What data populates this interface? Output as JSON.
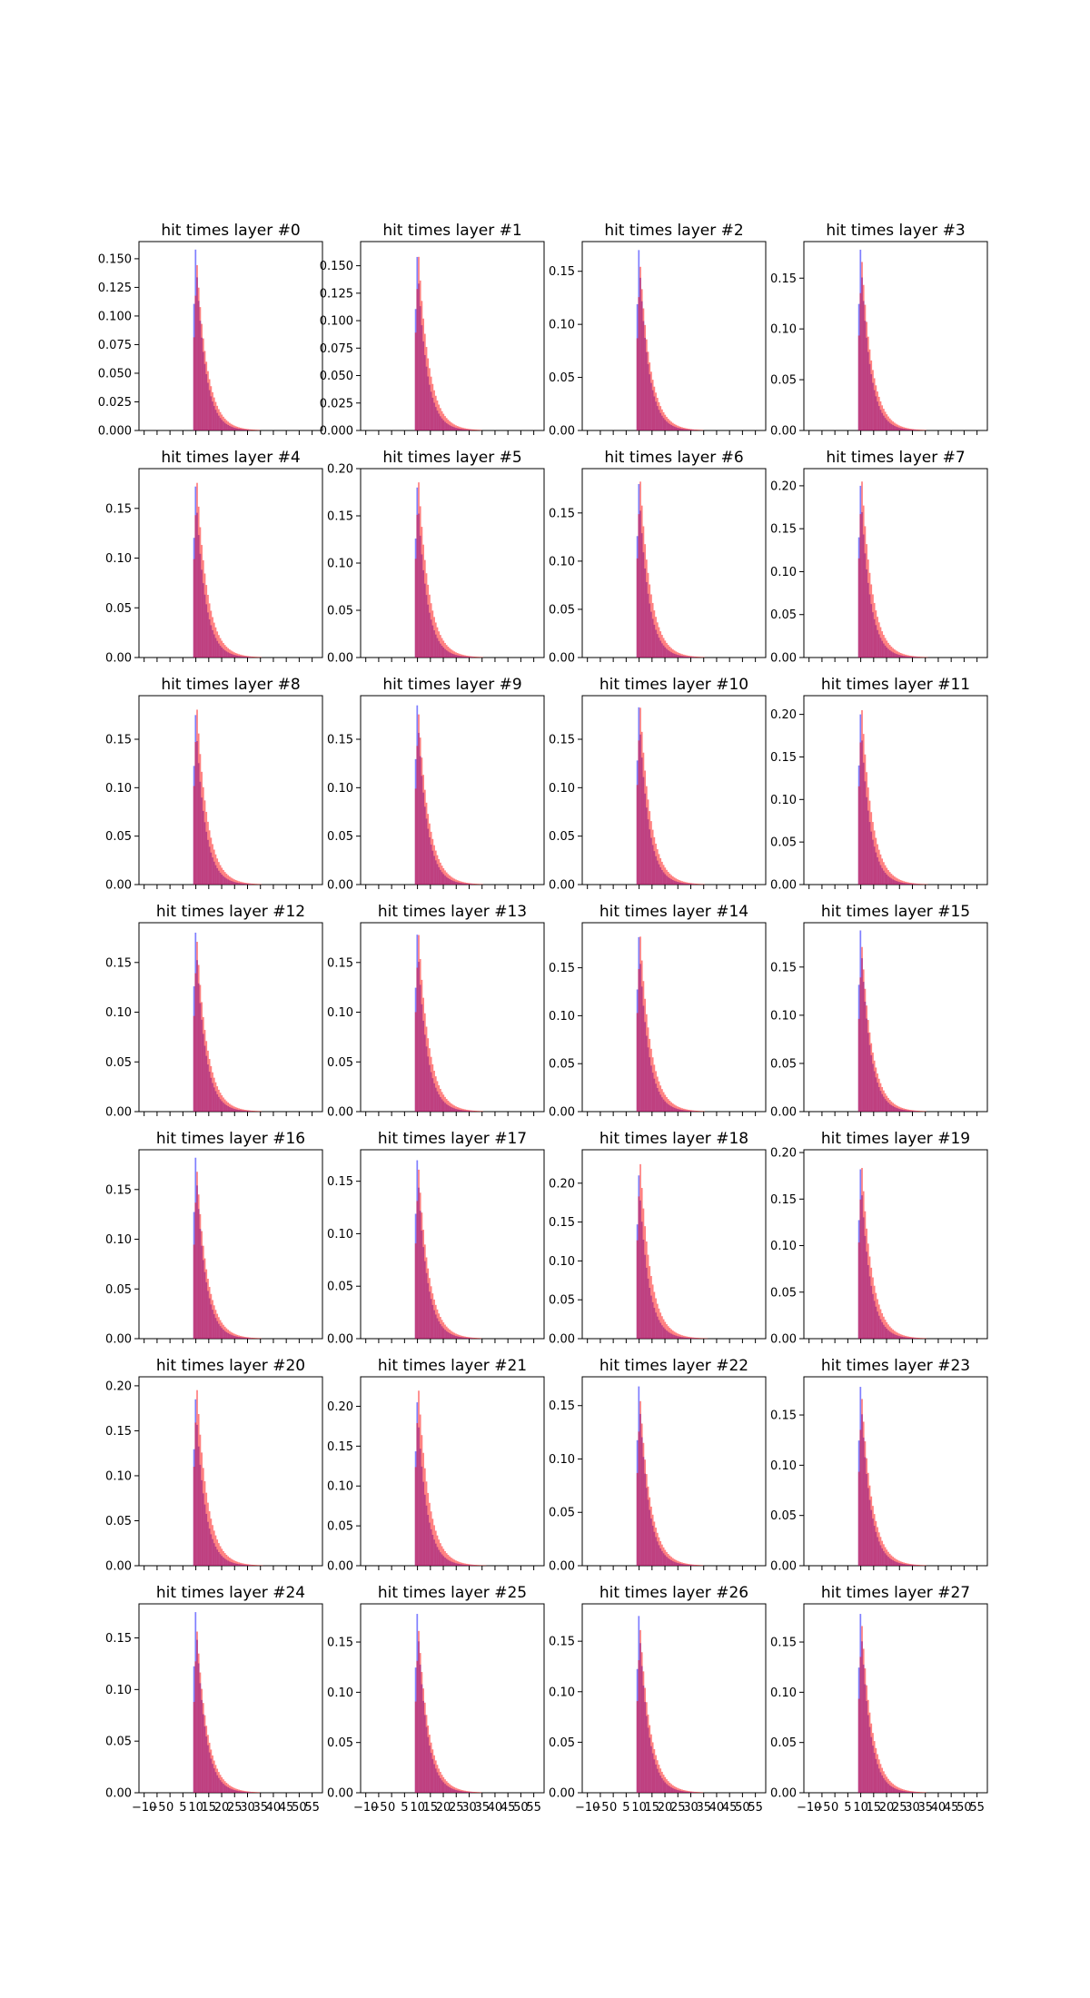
{
  "chart_data": {
    "type": "histogram_grid",
    "rows": 7,
    "cols": 4,
    "xlim": [
      -12,
      59
    ],
    "xticks": [
      -10,
      -5,
      0,
      5,
      10,
      15,
      20,
      25,
      30,
      35,
      40,
      45,
      50,
      55
    ],
    "xtick_labels_shown_on_bottom_row": true,
    "series_colors": {
      "series_a": "#0000ff",
      "series_b": "#ff0000",
      "alpha": 0.5
    },
    "panels": [
      {
        "title": "hit times layer #0",
        "peak_a": 0.158,
        "peak_b": 0.148,
        "ylim": [
          0,
          0.165
        ],
        "yticks": [
          0.0,
          0.025,
          0.05,
          0.075,
          0.1,
          0.125,
          0.15
        ],
        "ytick_labels": [
          "0.000",
          "0.025",
          "0.050",
          "0.075",
          "0.100",
          "0.125",
          "0.150"
        ]
      },
      {
        "title": "hit times layer #1",
        "peak_a": 0.158,
        "peak_b": 0.162,
        "ylim": [
          0,
          0.172
        ],
        "yticks": [
          0.0,
          0.025,
          0.05,
          0.075,
          0.1,
          0.125,
          0.15
        ],
        "ytick_labels": [
          "0.000",
          "0.025",
          "0.050",
          "0.075",
          "0.100",
          "0.125",
          "0.150"
        ]
      },
      {
        "title": "hit times layer #2",
        "peak_a": 0.17,
        "peak_b": 0.158,
        "ylim": [
          0,
          0.178
        ],
        "yticks": [
          0.0,
          0.05,
          0.1,
          0.15
        ],
        "ytick_labels": [
          "0.00",
          "0.05",
          "0.10",
          "0.15"
        ]
      },
      {
        "title": "hit times layer #3",
        "peak_a": 0.178,
        "peak_b": 0.17,
        "ylim": [
          0,
          0.186
        ],
        "yticks": [
          0.0,
          0.05,
          0.1,
          0.15
        ],
        "ytick_labels": [
          "0.00",
          "0.05",
          "0.10",
          "0.15"
        ]
      },
      {
        "title": "hit times layer #4",
        "peak_a": 0.172,
        "peak_b": 0.18,
        "ylim": [
          0,
          0.19
        ],
        "yticks": [
          0.0,
          0.05,
          0.1,
          0.15
        ],
        "ytick_labels": [
          "0.00",
          "0.05",
          "0.10",
          "0.15"
        ]
      },
      {
        "title": "hit times layer #5",
        "peak_a": 0.18,
        "peak_b": 0.19,
        "ylim": [
          0,
          0.2
        ],
        "yticks": [
          0.0,
          0.05,
          0.1,
          0.15,
          0.2
        ],
        "ytick_labels": [
          "0.00",
          "0.05",
          "0.10",
          "0.15",
          "0.20"
        ]
      },
      {
        "title": "hit times layer #6",
        "peak_a": 0.18,
        "peak_b": 0.187,
        "ylim": [
          0,
          0.196
        ],
        "yticks": [
          0.0,
          0.05,
          0.1,
          0.15
        ],
        "ytick_labels": [
          "0.00",
          "0.05",
          "0.10",
          "0.15"
        ]
      },
      {
        "title": "hit times layer #7",
        "peak_a": 0.2,
        "peak_b": 0.21,
        "ylim": [
          0,
          0.22
        ],
        "yticks": [
          0.0,
          0.05,
          0.1,
          0.15,
          0.2
        ],
        "ytick_labels": [
          "0.00",
          "0.05",
          "0.10",
          "0.15",
          "0.20"
        ]
      },
      {
        "title": "hit times layer #8",
        "peak_a": 0.175,
        "peak_b": 0.185,
        "ylim": [
          0,
          0.195
        ],
        "yticks": [
          0.0,
          0.05,
          0.1,
          0.15
        ],
        "ytick_labels": [
          "0.00",
          "0.05",
          "0.10",
          "0.15"
        ]
      },
      {
        "title": "hit times layer #9",
        "peak_a": 0.185,
        "peak_b": 0.18,
        "ylim": [
          0,
          0.195
        ],
        "yticks": [
          0.0,
          0.05,
          0.1,
          0.15
        ],
        "ytick_labels": [
          "0.00",
          "0.05",
          "0.10",
          "0.15"
        ]
      },
      {
        "title": "hit times layer #10",
        "peak_a": 0.183,
        "peak_b": 0.187,
        "ylim": [
          0,
          0.195
        ],
        "yticks": [
          0.0,
          0.05,
          0.1,
          0.15
        ],
        "ytick_labels": [
          "0.00",
          "0.05",
          "0.10",
          "0.15"
        ]
      },
      {
        "title": "hit times layer #11",
        "peak_a": 0.2,
        "peak_b": 0.21,
        "ylim": [
          0,
          0.222
        ],
        "yticks": [
          0.0,
          0.05,
          0.1,
          0.15,
          0.2
        ],
        "ytick_labels": [
          "0.00",
          "0.05",
          "0.10",
          "0.15",
          "0.20"
        ]
      },
      {
        "title": "hit times layer #12",
        "peak_a": 0.18,
        "peak_b": 0.175,
        "ylim": [
          0,
          0.19
        ],
        "yticks": [
          0.0,
          0.05,
          0.1,
          0.15
        ],
        "ytick_labels": [
          "0.00",
          "0.05",
          "0.10",
          "0.15"
        ]
      },
      {
        "title": "hit times layer #13",
        "peak_a": 0.178,
        "peak_b": 0.182,
        "ylim": [
          0,
          0.19
        ],
        "yticks": [
          0.0,
          0.05,
          0.1,
          0.15
        ],
        "ytick_labels": [
          "0.00",
          "0.05",
          "0.10",
          "0.15"
        ]
      },
      {
        "title": "hit times layer #14",
        "peak_a": 0.182,
        "peak_b": 0.187,
        "ylim": [
          0,
          0.197
        ],
        "yticks": [
          0.0,
          0.05,
          0.1,
          0.15
        ],
        "ytick_labels": [
          "0.00",
          "0.05",
          "0.10",
          "0.15"
        ]
      },
      {
        "title": "hit times layer #15",
        "peak_a": 0.188,
        "peak_b": 0.175,
        "ylim": [
          0,
          0.196
        ],
        "yticks": [
          0.0,
          0.05,
          0.1,
          0.15
        ],
        "ytick_labels": [
          "0.00",
          "0.05",
          "0.10",
          "0.15"
        ]
      },
      {
        "title": "hit times layer #16",
        "peak_a": 0.182,
        "peak_b": 0.172,
        "ylim": [
          0,
          0.19
        ],
        "yticks": [
          0.0,
          0.05,
          0.1,
          0.15
        ],
        "ytick_labels": [
          "0.00",
          "0.05",
          "0.10",
          "0.15"
        ]
      },
      {
        "title": "hit times layer #17",
        "peak_a": 0.17,
        "peak_b": 0.165,
        "ylim": [
          0,
          0.18
        ],
        "yticks": [
          0.0,
          0.05,
          0.1,
          0.15
        ],
        "ytick_labels": [
          "0.00",
          "0.05",
          "0.10",
          "0.15"
        ]
      },
      {
        "title": "hit times layer #18",
        "peak_a": 0.21,
        "peak_b": 0.23,
        "ylim": [
          0,
          0.243
        ],
        "yticks": [
          0.0,
          0.05,
          0.1,
          0.15,
          0.2
        ],
        "ytick_labels": [
          "0.00",
          "0.05",
          "0.10",
          "0.15",
          "0.20"
        ]
      },
      {
        "title": "hit times layer #19",
        "peak_a": 0.182,
        "peak_b": 0.188,
        "ylim": [
          0,
          0.203
        ],
        "yticks": [
          0.0,
          0.05,
          0.1,
          0.15,
          0.2
        ],
        "ytick_labels": [
          "0.00",
          "0.05",
          "0.10",
          "0.15",
          "0.20"
        ]
      },
      {
        "title": "hit times layer #20",
        "peak_a": 0.185,
        "peak_b": 0.2,
        "ylim": [
          0,
          0.21
        ],
        "yticks": [
          0.0,
          0.05,
          0.1,
          0.15,
          0.2
        ],
        "ytick_labels": [
          "0.00",
          "0.05",
          "0.10",
          "0.15",
          "0.20"
        ]
      },
      {
        "title": "hit times layer #21",
        "peak_a": 0.205,
        "peak_b": 0.225,
        "ylim": [
          0,
          0.237
        ],
        "yticks": [
          0.0,
          0.05,
          0.1,
          0.15,
          0.2
        ],
        "ytick_labels": [
          "0.00",
          "0.05",
          "0.10",
          "0.15",
          "0.20"
        ]
      },
      {
        "title": "hit times layer #22",
        "peak_a": 0.168,
        "peak_b": 0.158,
        "ylim": [
          0,
          0.177
        ],
        "yticks": [
          0.0,
          0.05,
          0.1,
          0.15
        ],
        "ytick_labels": [
          "0.00",
          "0.05",
          "0.10",
          "0.15"
        ]
      },
      {
        "title": "hit times layer #23",
        "peak_a": 0.178,
        "peak_b": 0.17,
        "ylim": [
          0,
          0.188
        ],
        "yticks": [
          0.0,
          0.05,
          0.1,
          0.15
        ],
        "ytick_labels": [
          "0.00",
          "0.05",
          "0.10",
          "0.15"
        ]
      },
      {
        "title": "hit times layer #24",
        "peak_a": 0.175,
        "peak_b": 0.16,
        "ylim": [
          0,
          0.183
        ],
        "yticks": [
          0.0,
          0.05,
          0.1,
          0.15
        ],
        "ytick_labels": [
          "0.00",
          "0.05",
          "0.10",
          "0.15"
        ]
      },
      {
        "title": "hit times layer #25",
        "peak_a": 0.178,
        "peak_b": 0.165,
        "ylim": [
          0,
          0.188
        ],
        "yticks": [
          0.0,
          0.05,
          0.1,
          0.15
        ],
        "ytick_labels": [
          "0.00",
          "0.05",
          "0.10",
          "0.15"
        ]
      },
      {
        "title": "hit times layer #26",
        "peak_a": 0.175,
        "peak_b": 0.165,
        "ylim": [
          0,
          0.187
        ],
        "yticks": [
          0.0,
          0.05,
          0.1,
          0.15
        ],
        "ytick_labels": [
          "0.00",
          "0.05",
          "0.10",
          "0.15"
        ]
      },
      {
        "title": "hit times layer #27",
        "peak_a": 0.178,
        "peak_b": 0.17,
        "ylim": [
          0,
          0.188
        ],
        "yticks": [
          0.0,
          0.05,
          0.1,
          0.15
        ],
        "ytick_labels": [
          "0.00",
          "0.05",
          "0.10",
          "0.15"
        ]
      }
    ]
  }
}
